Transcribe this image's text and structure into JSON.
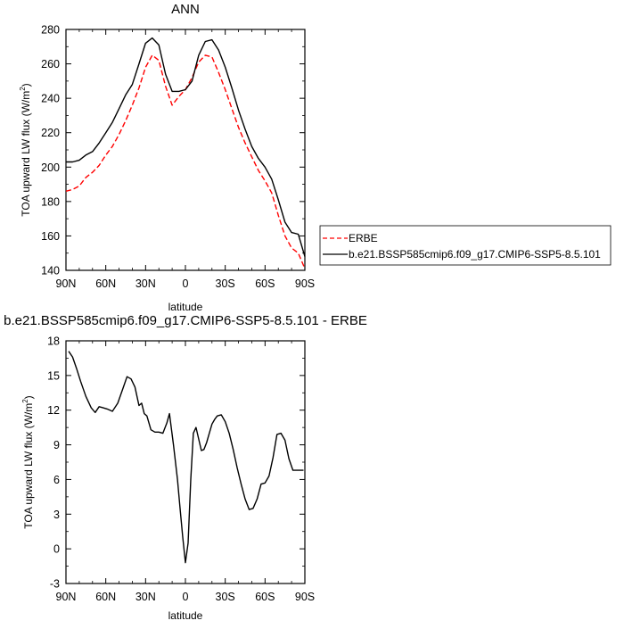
{
  "chart_data": [
    {
      "type": "line",
      "title": "ANN",
      "xlabel": "latitude",
      "ylabel": "TOA upward LW flux (W/m²)",
      "ylabel_parts": {
        "main": "TOA upward LW flux (W/m",
        "sup": "2",
        "end": ")"
      },
      "x_ticks": [
        90,
        60,
        30,
        0,
        -30,
        -60,
        -90
      ],
      "x_tick_labels": [
        "90N",
        "60N",
        "30N",
        "0",
        "30S",
        "60S",
        "90S"
      ],
      "xlim": [
        90,
        -90
      ],
      "ylim": [
        140,
        280
      ],
      "y_ticks": [
        140,
        160,
        180,
        200,
        220,
        240,
        260,
        280
      ],
      "legend_position": "right",
      "series": [
        {
          "name": "ERBE",
          "color": "#ff0000",
          "dash": "dashed",
          "x": [
            90,
            85,
            80,
            75,
            70,
            65,
            60,
            55,
            50,
            45,
            40,
            35,
            30,
            25,
            20,
            15,
            10,
            5,
            0,
            -5,
            -10,
            -15,
            -20,
            -25,
            -30,
            -35,
            -40,
            -45,
            -50,
            -55,
            -60,
            -65,
            -70,
            -75,
            -80,
            -85,
            -90
          ],
          "y": [
            186,
            187,
            189,
            194,
            197,
            201,
            207,
            212,
            219,
            227,
            236,
            246,
            258,
            265,
            262,
            247,
            236,
            241,
            245,
            252,
            261,
            265,
            264,
            255,
            245,
            234,
            223,
            214,
            206,
            198,
            192,
            185,
            172,
            160,
            153,
            150,
            141
          ]
        },
        {
          "name": "b.e21.BSSP585cmip6.f09_g17.CMIP6-SSP5-8.5.101",
          "color": "#000000",
          "dash": "solid",
          "x": [
            90,
            85,
            80,
            75,
            70,
            65,
            60,
            55,
            50,
            45,
            40,
            35,
            30,
            25,
            20,
            15,
            10,
            5,
            0,
            -5,
            -10,
            -15,
            -20,
            -25,
            -30,
            -35,
            -40,
            -45,
            -50,
            -55,
            -60,
            -65,
            -70,
            -75,
            -80,
            -85,
            -90
          ],
          "y": [
            203,
            203,
            204,
            207,
            209,
            214,
            220,
            226,
            234,
            242,
            248,
            260,
            272,
            275,
            271,
            254,
            244,
            244,
            245,
            250,
            265,
            273,
            274,
            268,
            258,
            246,
            233,
            222,
            212,
            205,
            200,
            193,
            181,
            168,
            162,
            161,
            148
          ]
        }
      ]
    },
    {
      "type": "line",
      "title": "b.e21.BSSP585cmip6.f09_g17.CMIP6-SSP5-8.5.101 - ERBE",
      "xlabel": "latitude",
      "ylabel": "TOA upward LW flux (W/m²)",
      "ylabel_parts": {
        "main": "TOA upward LW flux (W/m",
        "sup": "2",
        "end": ")"
      },
      "x_ticks": [
        90,
        60,
        30,
        0,
        -30,
        -60,
        -90
      ],
      "x_tick_labels": [
        "90N",
        "60N",
        "30N",
        "0",
        "30S",
        "60S",
        "90S"
      ],
      "xlim": [
        90,
        -90
      ],
      "ylim": [
        -3,
        18
      ],
      "y_ticks": [
        -3,
        0,
        3,
        6,
        9,
        12,
        15,
        18
      ],
      "series": [
        {
          "color": "#000000",
          "dash": "solid",
          "x": [
            88,
            85,
            82,
            79,
            75,
            71,
            68,
            65,
            62,
            59,
            55,
            51,
            47,
            44,
            41,
            38,
            35,
            33,
            31,
            29,
            26,
            23,
            20,
            17,
            14,
            12,
            9,
            6,
            4,
            2,
            0,
            -2,
            -4,
            -6,
            -8,
            -10,
            -12,
            -14,
            -16,
            -18,
            -20,
            -22,
            -24,
            -27,
            -30,
            -33,
            -36,
            -39,
            -42,
            -45,
            -48,
            -51,
            -54,
            -57,
            -60,
            -63,
            -66,
            -69,
            -72,
            -75,
            -78,
            -81,
            -84,
            -87,
            -89
          ],
          "y": [
            17.1,
            16.6,
            15.6,
            14.5,
            13.2,
            12.2,
            11.8,
            12.3,
            12.2,
            12.1,
            11.9,
            12.6,
            13.9,
            14.9,
            14.7,
            14.0,
            12.4,
            12.6,
            11.7,
            11.5,
            10.3,
            10.1,
            10.1,
            10.0,
            10.9,
            11.7,
            9.0,
            6.0,
            3.5,
            1.0,
            -1.2,
            0.5,
            6.0,
            10.0,
            10.5,
            9.5,
            8.5,
            8.6,
            9.2,
            10.0,
            10.8,
            11.2,
            11.5,
            11.6,
            11.0,
            10.0,
            8.6,
            7.0,
            5.6,
            4.3,
            3.4,
            3.5,
            4.3,
            5.6,
            5.7,
            6.3,
            7.9,
            9.9,
            10.0,
            9.4,
            7.8,
            6.8,
            6.8,
            6.8,
            6.8
          ]
        }
      ]
    }
  ]
}
